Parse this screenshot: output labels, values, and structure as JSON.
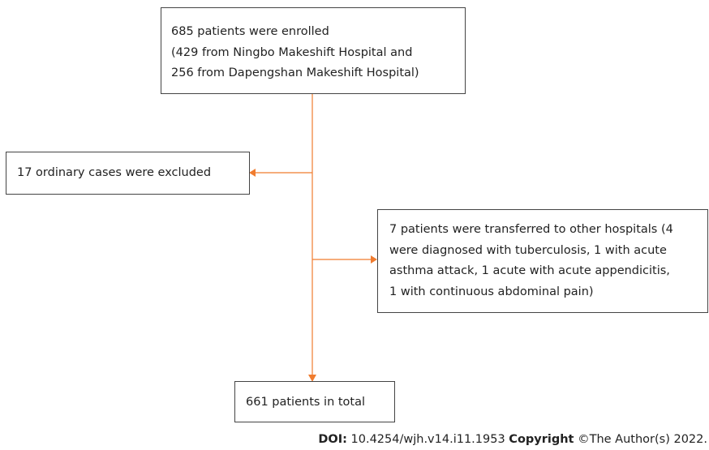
{
  "nodes": [
    {
      "lines": [
        "685 patients were enrolled",
        "(429 from Ningbo Makeshift Hospital and",
        "256 from Dapengshan Makeshift Hospital)"
      ]
    },
    {
      "lines": [
        "17 ordinary cases were excluded"
      ]
    },
    {
      "lines": [
        "7 patients were transferred to other hospitals (4",
        "were diagnosed with tuberculosis, 1 with acute",
        "asthma attack, 1 acute with acute appendicitis,",
        "1 with continuous abdominal pain)"
      ]
    },
    {
      "lines": [
        "661 patients in total"
      ]
    }
  ],
  "footer": {
    "doi_label": "DOI:",
    "doi": "10.4254/wjh.v14.i11.1953",
    "copyright_label": "Copyright",
    "copyright": "©The Author(s) 2022."
  }
}
